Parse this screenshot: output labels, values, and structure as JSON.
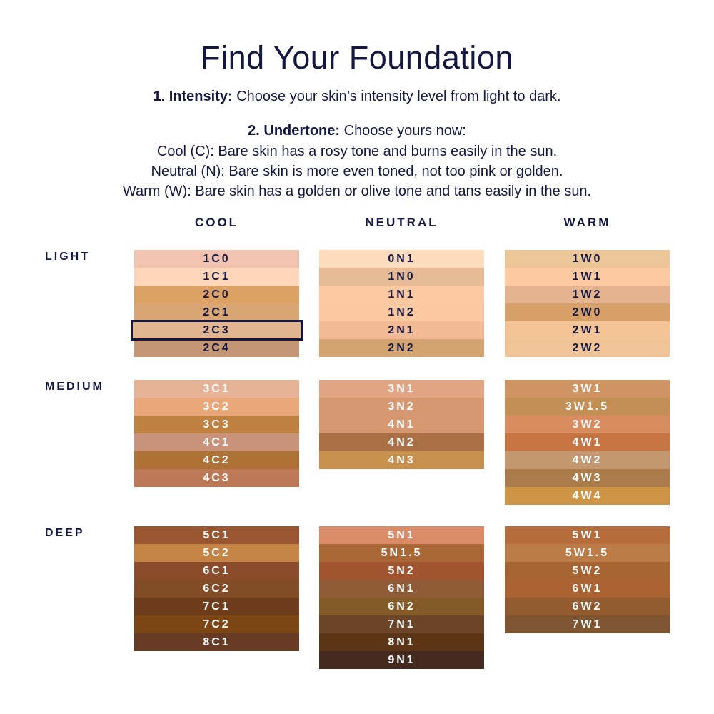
{
  "title": "Find Your Foundation",
  "step1": {
    "label": "1. Intensity:",
    "text": " Choose your skin’s intensity level from light to dark."
  },
  "step2": {
    "label": "2. Undertone:",
    "text": " Choose yours now:"
  },
  "undertones": [
    "Cool (C): Bare skin has a rosy tone and burns easily in the sun.",
    "Neutral (N): Bare skin is more even toned, not too pink or golden.",
    "Warm (W): Bare skin has a golden or olive tone and tans easily in the sun."
  ],
  "columns": [
    "COOL",
    "NEUTRAL",
    "WARM"
  ],
  "selected_shade": "2C3",
  "groups": [
    {
      "label": "LIGHT",
      "text": "dark",
      "stacks": [
        [
          [
            "1C0",
            "#f1c3b0"
          ],
          [
            "1C1",
            "#fdd5b8"
          ],
          [
            "2C0",
            "#dca265"
          ],
          [
            "2C1",
            "#d9a572"
          ],
          [
            "2C3",
            "#e0b590"
          ],
          [
            "2C4",
            "#c49674"
          ]
        ],
        [
          [
            "0N1",
            "#fcdcbd"
          ],
          [
            "1N0",
            "#e8bb97"
          ],
          [
            "1N1",
            "#fdc9a2"
          ],
          [
            "1N2",
            "#fbc8a2"
          ],
          [
            "2N1",
            "#f2ba95"
          ],
          [
            "2N2",
            "#d3a46f"
          ]
        ],
        [
          [
            "1W0",
            "#ecc697"
          ],
          [
            "1W1",
            "#fcc9a0"
          ],
          [
            "1W2",
            "#e4b38f"
          ],
          [
            "2W0",
            "#d6a068"
          ],
          [
            "2W1",
            "#f3c495"
          ],
          [
            "2W2",
            "#f1c498"
          ]
        ]
      ]
    },
    {
      "label": "MEDIUM",
      "text": "light",
      "stacks": [
        [
          [
            "3C1",
            "#e6b397"
          ],
          [
            "3C2",
            "#eaa87a"
          ],
          [
            "3C3",
            "#bf8142"
          ],
          [
            "4C1",
            "#c8937a"
          ],
          [
            "4C2",
            "#ae7136"
          ],
          [
            "4C3",
            "#bd7957"
          ]
        ],
        [
          [
            "3N1",
            "#e2a583"
          ],
          [
            "3N2",
            "#d59870"
          ],
          [
            "4N1",
            "#d59870"
          ],
          [
            "4N2",
            "#ab7045"
          ],
          [
            "4N3",
            "#c8904d"
          ]
        ],
        [
          [
            "3W1",
            "#cf9462"
          ],
          [
            "3W1.5",
            "#c48f55"
          ],
          [
            "3W2",
            "#d88c5f"
          ],
          [
            "4W1",
            "#c57442"
          ],
          [
            "4W2",
            "#c39870"
          ],
          [
            "4W3",
            "#a97c49"
          ],
          [
            "4W4",
            "#cd9446"
          ]
        ]
      ]
    },
    {
      "label": "DEEP",
      "text": "light",
      "stacks": [
        [
          [
            "5C1",
            "#995630"
          ],
          [
            "5C2",
            "#c68444"
          ],
          [
            "6C1",
            "#8a4c2b"
          ],
          [
            "6C2",
            "#824c26"
          ],
          [
            "7C1",
            "#6d3c1b"
          ],
          [
            "7C2",
            "#7b4613"
          ],
          [
            "8C1",
            "#673a24"
          ]
        ],
        [
          [
            "5N1",
            "#da8c69"
          ],
          [
            "5N1.5",
            "#a86735"
          ],
          [
            "5N2",
            "#a1552e"
          ],
          [
            "6N1",
            "#8f5c37"
          ],
          [
            "6N2",
            "#845a27"
          ],
          [
            "7N1",
            "#6c4428"
          ],
          [
            "8N1",
            "#5c3517"
          ],
          [
            "9N1",
            "#452a20"
          ]
        ],
        [
          [
            "5W1",
            "#b66d3b"
          ],
          [
            "5W1.5",
            "#bc7c48"
          ],
          [
            "5W2",
            "#a86332"
          ],
          [
            "6W1",
            "#aa6233"
          ],
          [
            "6W2",
            "#915a2f"
          ],
          [
            "7W1",
            "#7e5530"
          ]
        ]
      ]
    }
  ]
}
